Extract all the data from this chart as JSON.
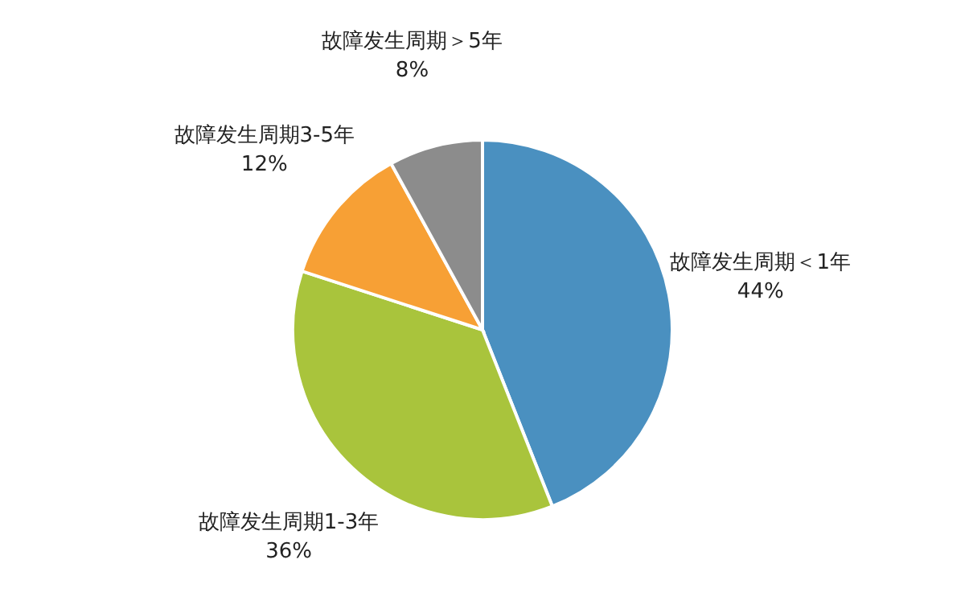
{
  "chart_data": {
    "type": "pie",
    "categories": [
      "故障发生周期＜1年",
      "故障发生周期1-3年",
      "故障发生周期3-5年",
      "故障发生周期＞5年"
    ],
    "values": [
      44,
      36,
      12,
      8
    ],
    "value_labels": [
      "44%",
      "36%",
      "12%",
      "8%"
    ],
    "colors": [
      "#4a90c0",
      "#a9c43c",
      "#f7a035",
      "#8c8c8c"
    ]
  }
}
